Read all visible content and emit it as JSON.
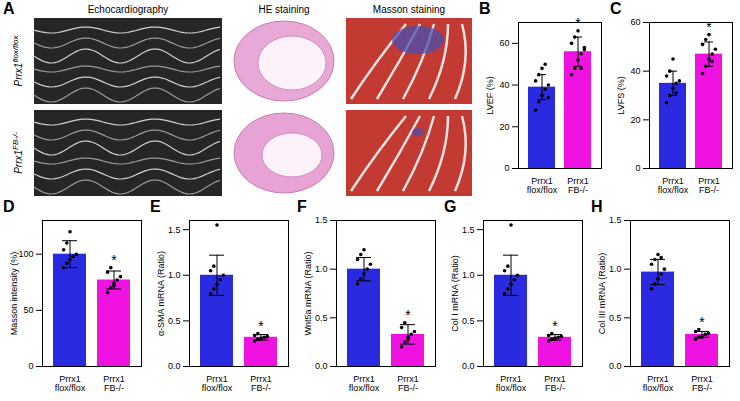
{
  "panel_A": {
    "label": "A",
    "columns": [
      "Echocardiography",
      "HE staining",
      "Masson staining"
    ],
    "rows": [
      "Prrx1flox/flox",
      "Prrx1FB-/-"
    ]
  },
  "chart_data": [
    {
      "panel": "B",
      "type": "bar",
      "ylabel": "LVEF (%)",
      "categories": [
        "Prrx1flox/flox",
        "Prrx1FB-/-"
      ],
      "colors": [
        "#2a2ae0",
        "#f012e0"
      ],
      "values": [
        39,
        56
      ],
      "errors": [
        6,
        7
      ],
      "points": [
        [
          28,
          32,
          35,
          38,
          40,
          42,
          45,
          48,
          50,
          34
        ],
        [
          45,
          48,
          52,
          55,
          58,
          60,
          63,
          66,
          48,
          57
        ]
      ],
      "ylim": [
        0,
        70
      ],
      "yticks": [
        0,
        20,
        40,
        60
      ],
      "annotations": [
        {
          "category": 1,
          "text": "*"
        }
      ]
    },
    {
      "panel": "C",
      "type": "bar",
      "ylabel": "LVFS (%)",
      "categories": [
        "Prrx1flox/flox",
        "Prrx1FB-/-"
      ],
      "colors": [
        "#2a2ae0",
        "#f012e0"
      ],
      "values": [
        35,
        47
      ],
      "errors": [
        5,
        5
      ],
      "points": [
        [
          27,
          30,
          33,
          35,
          36,
          38,
          40,
          45,
          31
        ],
        [
          39,
          42,
          45,
          47,
          49,
          51,
          53,
          55,
          44
        ]
      ],
      "ylim": [
        0,
        60
      ],
      "yticks": [
        0,
        20,
        40,
        60
      ],
      "annotations": [
        {
          "category": 1,
          "text": "*"
        }
      ]
    },
    {
      "panel": "D",
      "type": "bar",
      "ylabel": "Masson intensity (%)",
      "categories": [
        "Prrx1flox/flox",
        "Prrx1FB-/-"
      ],
      "colors": [
        "#2a2ae0",
        "#f012e0"
      ],
      "values": [
        100,
        77
      ],
      "errors": [
        12,
        8
      ],
      "points": [
        [
          88,
          92,
          95,
          98,
          100,
          104,
          110,
          120
        ],
        [
          66,
          70,
          74,
          77,
          80,
          84,
          88,
          72
        ]
      ],
      "ylim": [
        0,
        130
      ],
      "yticks": [
        0,
        50,
        100
      ],
      "annotations": [
        {
          "category": 1,
          "text": "*"
        }
      ]
    },
    {
      "panel": "E",
      "type": "bar",
      "ylabel": "α-SMA mRNA (Ratio)",
      "categories": [
        "Prrx1flox/flox",
        "Prrx1FB-/-"
      ],
      "colors": [
        "#2a2ae0",
        "#f012e0"
      ],
      "values": [
        1.0,
        0.32
      ],
      "errors": [
        0.22,
        0.03
      ],
      "points": [
        [
          0.8,
          0.85,
          0.9,
          0.95,
          1.0,
          1.05,
          1.1,
          1.55
        ],
        [
          0.28,
          0.3,
          0.31,
          0.32,
          0.33,
          0.34,
          0.36,
          0.3
        ]
      ],
      "ylim": [
        0,
        1.6
      ],
      "yticks": [
        {
          "value": 0,
          "label": "0.0"
        },
        {
          "value": 0.5,
          "label": "0.5"
        },
        {
          "value": 1,
          "label": "1.0"
        },
        {
          "value": 1.5,
          "label": "1.5"
        }
      ],
      "annotations": [
        {
          "category": 1,
          "text": "*"
        }
      ]
    },
    {
      "panel": "F",
      "type": "bar",
      "ylabel": "Wnt5a mRNA (Ratio)",
      "categories": [
        "Prrx1flox/flox",
        "Prrx1FB-/-"
      ],
      "colors": [
        "#2a2ae0",
        "#f012e0"
      ],
      "values": [
        1.0,
        0.33
      ],
      "errors": [
        0.12,
        0.1
      ],
      "points": [
        [
          0.85,
          0.9,
          0.95,
          1.0,
          1.05,
          1.1,
          1.15,
          1.2
        ],
        [
          0.2,
          0.25,
          0.3,
          0.33,
          0.36,
          0.4,
          0.45,
          0.28
        ]
      ],
      "ylim": [
        0,
        1.5
      ],
      "yticks": [
        {
          "value": 0,
          "label": "0.0"
        },
        {
          "value": 0.5,
          "label": "0.5"
        },
        {
          "value": 1,
          "label": "1.0"
        },
        {
          "value": 1.5,
          "label": "1.5"
        }
      ],
      "annotations": [
        {
          "category": 1,
          "text": "*"
        }
      ]
    },
    {
      "panel": "G",
      "type": "bar",
      "ylabel": "Col I mRNA (Ratio)",
      "categories": [
        "Prrx1flox/flox",
        "Prrx1FB-/-"
      ],
      "colors": [
        "#2a2ae0",
        "#f012e0"
      ],
      "values": [
        1.0,
        0.32
      ],
      "errors": [
        0.22,
        0.03
      ],
      "points": [
        [
          0.8,
          0.85,
          0.9,
          0.95,
          1.0,
          1.05,
          1.1,
          1.55
        ],
        [
          0.28,
          0.3,
          0.31,
          0.32,
          0.33,
          0.34,
          0.36,
          0.3
        ]
      ],
      "ylim": [
        0,
        1.6
      ],
      "yticks": [
        {
          "value": 0,
          "label": "0.0"
        },
        {
          "value": 0.5,
          "label": "0.5"
        },
        {
          "value": 1,
          "label": "1.0"
        },
        {
          "value": 1.5,
          "label": "1.5"
        }
      ],
      "annotations": [
        {
          "category": 1,
          "text": "*"
        }
      ]
    },
    {
      "panel": "H",
      "type": "bar",
      "ylabel": "Col III mRNA (Ratio)",
      "categories": [
        "Prrx1flox/flox",
        "Prrx1FB-/-"
      ],
      "colors": [
        "#2a2ae0",
        "#f012e0"
      ],
      "values": [
        0.97,
        0.33
      ],
      "errors": [
        0.13,
        0.03
      ],
      "points": [
        [
          0.8,
          0.85,
          0.9,
          0.95,
          1.0,
          1.05,
          1.1,
          1.15,
          1.12
        ],
        [
          0.28,
          0.3,
          0.31,
          0.33,
          0.34,
          0.36,
          0.38,
          0.3
        ]
      ],
      "ylim": [
        0,
        1.5
      ],
      "yticks": [
        {
          "value": 0,
          "label": "0.0"
        },
        {
          "value": 0.5,
          "label": "0.5"
        },
        {
          "value": 1,
          "label": "1.0"
        },
        {
          "value": 1.5,
          "label": "1.5"
        }
      ],
      "annotations": [
        {
          "category": 1,
          "text": "*"
        }
      ]
    }
  ]
}
